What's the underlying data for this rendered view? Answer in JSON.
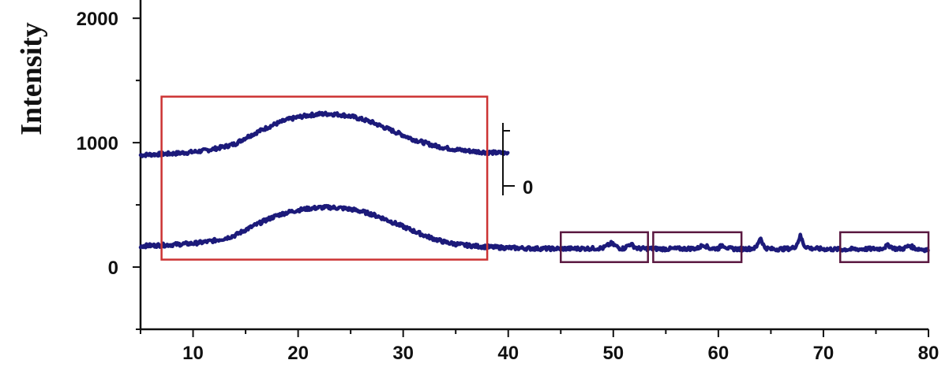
{
  "chart_data": {
    "type": "line",
    "title": "",
    "xlabel": "",
    "ylabel": "Intensity",
    "xlim": [
      5,
      80
    ],
    "ylim": [
      -500,
      2400
    ],
    "x_ticks": [
      10,
      20,
      30,
      40,
      50,
      60,
      70,
      80
    ],
    "y_ticks": [
      0,
      1000,
      2000
    ],
    "grid": false,
    "legend": "none",
    "colors": {
      "series": "#1c1a7a",
      "highlight_box_amorphous": "#cc3333",
      "highlight_box_peaks": "#5a1840",
      "axis": "#111111"
    },
    "series": [
      {
        "points": [
          [
            5,
            900
          ],
          [
            6,
            905
          ],
          [
            7,
            908
          ],
          [
            8,
            912
          ],
          [
            9,
            918
          ],
          [
            10,
            925
          ],
          [
            11,
            935
          ],
          [
            12,
            950
          ],
          [
            13,
            968
          ],
          [
            14,
            990
          ],
          [
            15,
            1040
          ],
          [
            16,
            1080
          ],
          [
            17,
            1120
          ],
          [
            18,
            1155
          ],
          [
            19,
            1185
          ],
          [
            20,
            1205
          ],
          [
            21,
            1220
          ],
          [
            22,
            1230
          ],
          [
            23,
            1232
          ],
          [
            24,
            1225
          ],
          [
            25,
            1212
          ],
          [
            26,
            1190
          ],
          [
            27,
            1165
          ],
          [
            28,
            1130
          ],
          [
            29,
            1095
          ],
          [
            30,
            1060
          ],
          [
            31,
            1025
          ],
          [
            32,
            1000
          ],
          [
            33,
            975
          ],
          [
            34,
            958
          ],
          [
            35,
            945
          ],
          [
            36,
            935
          ],
          [
            37,
            928
          ],
          [
            38,
            922
          ],
          [
            39,
            918
          ],
          [
            40,
            915
          ]
        ]
      },
      {
        "points": [
          [
            5,
            170
          ],
          [
            6,
            173
          ],
          [
            7,
            176
          ],
          [
            8,
            180
          ],
          [
            9,
            185
          ],
          [
            10,
            190
          ],
          [
            11,
            200
          ],
          [
            12,
            213
          ],
          [
            13,
            230
          ],
          [
            14,
            255
          ],
          [
            15,
            300
          ],
          [
            16,
            340
          ],
          [
            17,
            380
          ],
          [
            18,
            415
          ],
          [
            19,
            440
          ],
          [
            20,
            458
          ],
          [
            21,
            470
          ],
          [
            22,
            478
          ],
          [
            23,
            480
          ],
          [
            24,
            475
          ],
          [
            25,
            465
          ],
          [
            26,
            448
          ],
          [
            27,
            425
          ],
          [
            28,
            395
          ],
          [
            29,
            360
          ],
          [
            30,
            325
          ],
          [
            31,
            290
          ],
          [
            32,
            255
          ],
          [
            33,
            225
          ],
          [
            34,
            200
          ],
          [
            35,
            185
          ],
          [
            36,
            175
          ],
          [
            37,
            168
          ],
          [
            38,
            162
          ],
          [
            39,
            158
          ],
          [
            40,
            155
          ],
          [
            42,
            150
          ],
          [
            44,
            148
          ],
          [
            46,
            148
          ],
          [
            48,
            150
          ],
          [
            49,
            152
          ],
          [
            49.8,
            190
          ],
          [
            50.6,
            152
          ],
          [
            51,
            150
          ],
          [
            51.6,
            185
          ],
          [
            52.3,
            150
          ],
          [
            53,
            148
          ],
          [
            55,
            146
          ],
          [
            57,
            148
          ],
          [
            58,
            150
          ],
          [
            58.6,
            180
          ],
          [
            59.2,
            150
          ],
          [
            60,
            150
          ],
          [
            60.4,
            180
          ],
          [
            61,
            148
          ],
          [
            62,
            145
          ],
          [
            63,
            148
          ],
          [
            63.6,
            155
          ],
          [
            64,
            240
          ],
          [
            64.4,
            155
          ],
          [
            65,
            145
          ],
          [
            66,
            145
          ],
          [
            67,
            150
          ],
          [
            67.4,
            170
          ],
          [
            67.8,
            250
          ],
          [
            68.2,
            170
          ],
          [
            68.8,
            150
          ],
          [
            70,
            145
          ],
          [
            72,
            142
          ],
          [
            74,
            145
          ],
          [
            75.5,
            148
          ],
          [
            76.2,
            175
          ],
          [
            76.8,
            148
          ],
          [
            77.6,
            148
          ],
          [
            78.2,
            172
          ],
          [
            78.8,
            148
          ],
          [
            80,
            138
          ]
        ]
      }
    ],
    "inset_scale": {
      "tick_label": "0"
    },
    "highlight_boxes": [
      {
        "x_range": [
          7,
          38
        ],
        "y_range": [
          60,
          1370
        ],
        "kind": "amorphous"
      },
      {
        "x_range": [
          45,
          53.3
        ],
        "y_range": [
          40,
          280
        ],
        "kind": "peaks"
      },
      {
        "x_range": [
          53.8,
          62.2
        ],
        "y_range": [
          40,
          280
        ],
        "kind": "peaks"
      },
      {
        "x_range": [
          71.6,
          80
        ],
        "y_range": [
          40,
          280
        ],
        "kind": "peaks"
      }
    ]
  }
}
